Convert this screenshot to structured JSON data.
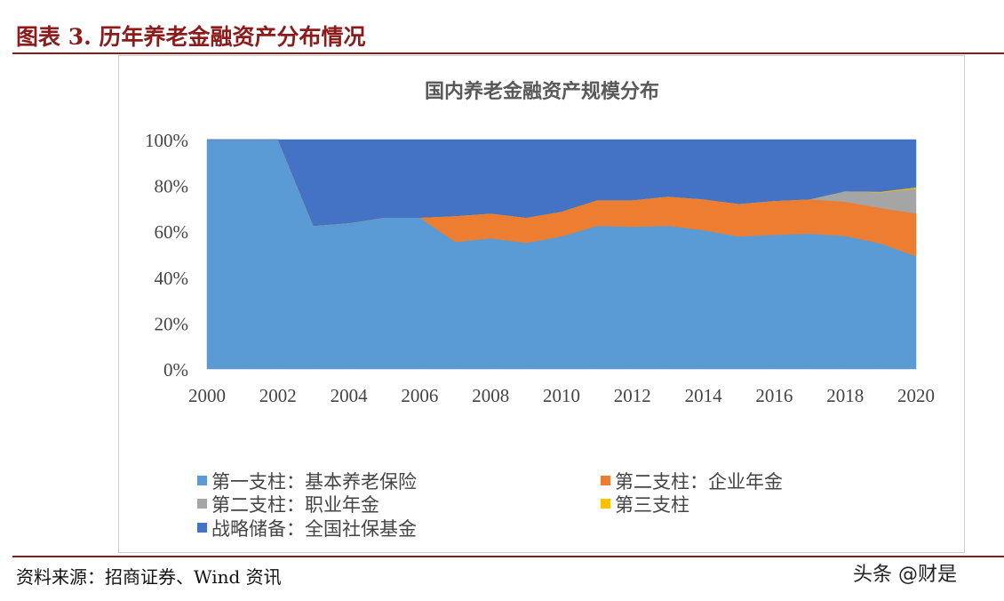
{
  "figure_title": "图表 3.   历年养老金融资产分布情况",
  "source": "资料来源：招商证券、Wind 资讯",
  "watermark": "头条 @财是",
  "chart_data": {
    "type": "area",
    "stacked": true,
    "percent": true,
    "title": "国内养老金融资产规模分布",
    "xlabel": "",
    "ylabel": "",
    "ylim": [
      0,
      100
    ],
    "y_ticks": [
      "0%",
      "20%",
      "40%",
      "60%",
      "80%",
      "100%"
    ],
    "x_tick_labels": [
      "2000",
      "2002",
      "2004",
      "2006",
      "2008",
      "2010",
      "2012",
      "2014",
      "2016",
      "2018",
      "2020"
    ],
    "x": [
      2000,
      2001,
      2002,
      2003,
      2004,
      2005,
      2006,
      2007,
      2008,
      2009,
      2010,
      2011,
      2012,
      2013,
      2014,
      2015,
      2016,
      2017,
      2018,
      2019,
      2020
    ],
    "legend_position": "bottom",
    "grid": false,
    "series": [
      {
        "name": "第一支柱：基本养老保险",
        "color": "#5B9BD5",
        "values": [
          100,
          100,
          100,
          62.4,
          63.6,
          66,
          66,
          55.4,
          57,
          55,
          57.8,
          62.4,
          62,
          62.4,
          60.5,
          57.8,
          58.5,
          59,
          58,
          54.7,
          49.2
        ]
      },
      {
        "name": "第二支柱：企业年金",
        "color": "#ED7D31",
        "values": [
          0,
          0,
          0,
          0,
          0,
          0,
          0,
          11.3,
          10.8,
          11,
          10.8,
          11.2,
          11.6,
          12.8,
          13.5,
          14.2,
          14.8,
          15,
          14.9,
          15.5,
          18.6
        ]
      },
      {
        "name": "第二支柱：职业年金",
        "color": "#A5A5A5",
        "values": [
          0,
          0,
          0,
          0,
          0,
          0,
          0,
          0,
          0,
          0,
          0,
          0,
          0,
          0,
          0,
          0,
          0,
          0,
          4.6,
          6.8,
          10.9
        ]
      },
      {
        "name": "第三支柱",
        "color": "#FFC000",
        "values": [
          0,
          0,
          0,
          0,
          0,
          0,
          0,
          0,
          0,
          0,
          0,
          0,
          0,
          0,
          0,
          0,
          0,
          0,
          0,
          0.3,
          0.5
        ]
      },
      {
        "name": "战略储备：全国社保基金",
        "color": "#4472C4",
        "values": [
          0,
          0,
          0,
          37.6,
          36.4,
          34,
          34,
          33.3,
          32.2,
          34,
          31.4,
          26.4,
          26.4,
          24.8,
          26,
          28,
          26.7,
          26,
          22.5,
          22.7,
          20.8
        ]
      }
    ]
  }
}
